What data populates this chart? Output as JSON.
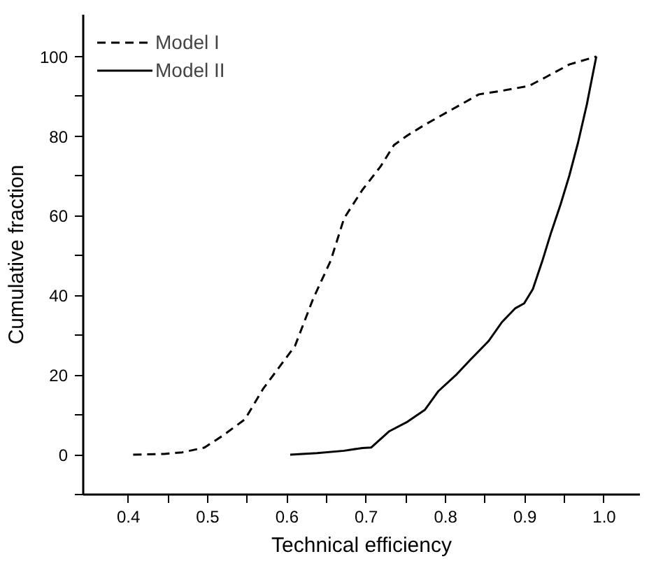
{
  "chart_data": {
    "type": "line",
    "xlabel": "Technical efficiency",
    "ylabel": "Cumulative fraction",
    "xlim": [
      0.343,
      1.045
    ],
    "ylim": [
      -10,
      110.5
    ],
    "xticks": [
      0.4,
      {
        "value": 0.45,
        "label": null
      },
      0.5,
      {
        "value": 0.55,
        "label": null
      },
      0.6,
      {
        "value": 0.65,
        "label": null
      },
      0.7,
      {
        "value": 0.75,
        "label": null
      },
      0.8,
      {
        "value": 0.85,
        "label": null
      },
      0.9,
      {
        "value": 0.95,
        "label": null
      },
      {
        "value": 1.0,
        "label": "1.0"
      }
    ],
    "yticks": [
      {
        "value": -10,
        "label": null
      },
      0,
      {
        "value": 10,
        "label": null
      },
      20,
      {
        "value": 30,
        "label": null
      },
      40,
      {
        "value": 50,
        "label": null
      },
      60,
      {
        "value": 70,
        "label": null
      },
      80,
      {
        "value": 90,
        "label": null
      },
      100
    ],
    "grid": false,
    "legend": "top left",
    "marker": "none",
    "series": [
      {
        "name": "Model I",
        "color": "#000000",
        "line_style": "dashed",
        "x": [
          0.406,
          0.445,
          0.468,
          0.496,
          0.519,
          0.547,
          0.57,
          0.61,
          0.633,
          0.655,
          0.672,
          0.695,
          0.718,
          0.735,
          0.752,
          0.774,
          0.808,
          0.842,
          0.871,
          0.905,
          0.928,
          0.956,
          0.99
        ],
        "values": [
          0,
          0.2,
          0.6,
          1.8,
          4.8,
          8.9,
          16.6,
          27.3,
          39.2,
          48.7,
          59.4,
          66.5,
          72.4,
          77.8,
          80.2,
          82.9,
          86.7,
          90.5,
          91.4,
          92.6,
          95,
          98,
          100
        ]
      },
      {
        "name": "Model II",
        "color": "#000000",
        "line_style": "solid",
        "x": [
          0.604,
          0.638,
          0.672,
          0.695,
          0.706,
          0.729,
          0.752,
          0.774,
          0.791,
          0.814,
          0.831,
          0.854,
          0.871,
          0.888,
          0.899,
          0.91,
          0.922,
          0.933,
          0.945,
          0.956,
          0.967,
          0.978,
          0.985,
          0.99
        ],
        "values": [
          0,
          0.4,
          1,
          1.7,
          1.8,
          5.9,
          8.3,
          11.3,
          16,
          20.2,
          23.8,
          28.5,
          33.3,
          36.8,
          38,
          41.6,
          48.7,
          55.8,
          62.9,
          70.1,
          78.4,
          87.9,
          95,
          100
        ]
      }
    ]
  }
}
